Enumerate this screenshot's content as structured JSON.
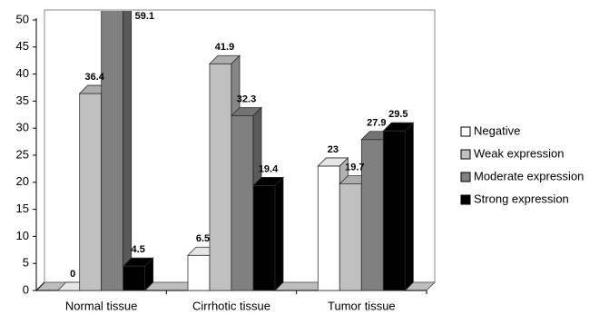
{
  "chart_data": {
    "type": "bar3d",
    "categories": [
      "Normal tissue",
      "Cirrhotic tissue",
      "Tumor tissue"
    ],
    "series": [
      {
        "name": "Negative",
        "color": "#ffffff",
        "values": [
          0,
          6.5,
          23
        ]
      },
      {
        "name": "Weak expression",
        "color": "#c0c0c0",
        "values": [
          36.4,
          41.9,
          19.7
        ]
      },
      {
        "name": "Moderate expression",
        "color": "#808080",
        "values": [
          59.1,
          32.3,
          27.9
        ]
      },
      {
        "name": "Strong expression",
        "color": "#000000",
        "values": [
          4.5,
          19.4,
          29.5
        ]
      }
    ],
    "ylim": [
      0,
      50
    ],
    "yticks": [
      0,
      5,
      10,
      15,
      20,
      25,
      30,
      35,
      40,
      45,
      50
    ],
    "legend": "right"
  }
}
